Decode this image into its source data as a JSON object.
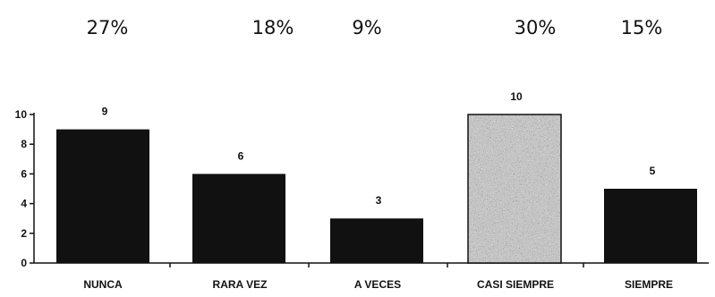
{
  "chart_data": {
    "type": "bar",
    "categories": [
      "NUNCA",
      "RARA VEZ",
      "A VECES",
      "CASI SIEMPRE",
      "SIEMPRE"
    ],
    "values": [
      9,
      6,
      3,
      10,
      5
    ],
    "value_labels": [
      "9",
      "6",
      "3",
      "10",
      "5"
    ],
    "percent_labels": [
      "27%",
      "18%",
      "9%",
      "30%",
      "15%"
    ],
    "title": "",
    "xlabel": "",
    "ylabel": "",
    "ylim": [
      0,
      10
    ],
    "yticks": [
      "0",
      "2",
      "4",
      "6",
      "8",
      "10"
    ],
    "grid": false,
    "legend": "none",
    "colors": {
      "bar": "#111111",
      "highlight_bar": "#9a9a9a",
      "axis": "#111111"
    },
    "highlight_category": "CASI SIEMPRE"
  }
}
